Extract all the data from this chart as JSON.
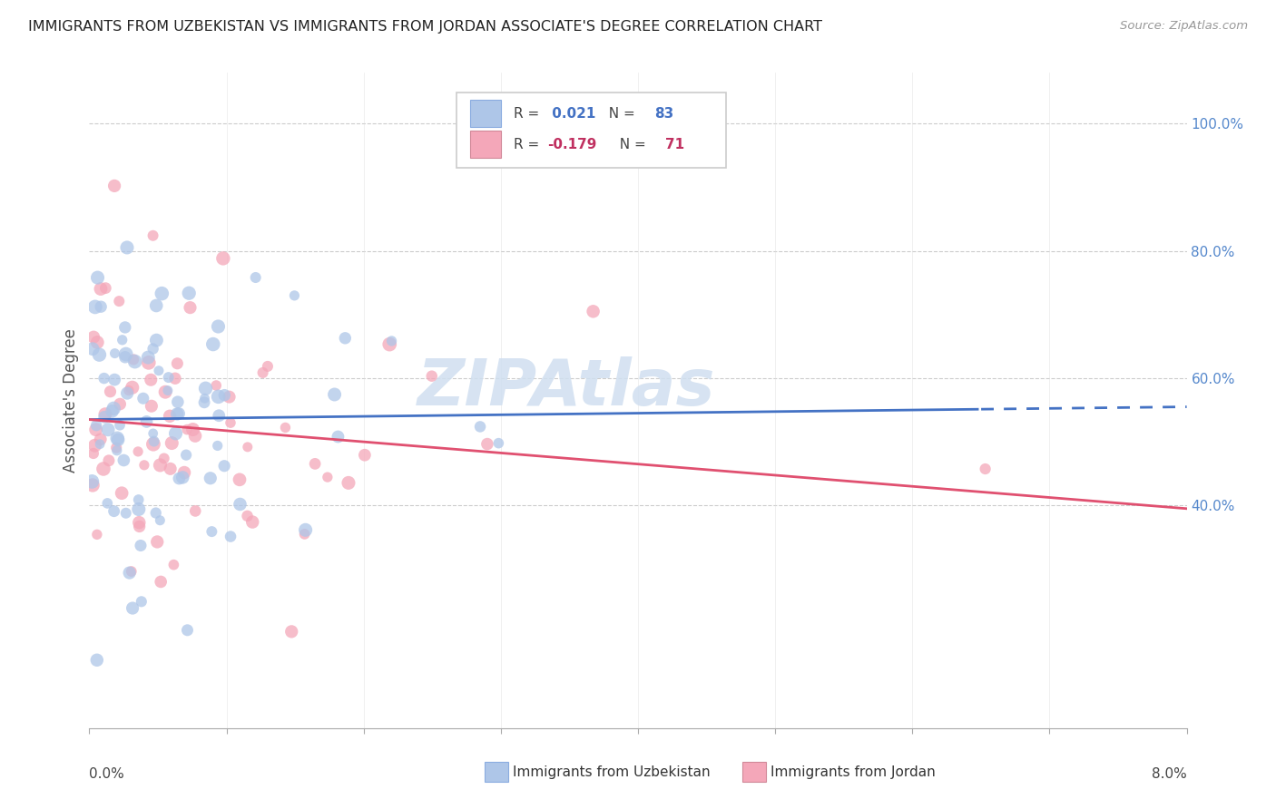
{
  "title": "IMMIGRANTS FROM UZBEKISTAN VS IMMIGRANTS FROM JORDAN ASSOCIATE'S DEGREE CORRELATION CHART",
  "source": "Source: ZipAtlas.com",
  "ylabel": "Associate's Degree",
  "right_ytick_vals": [
    0.4,
    0.6,
    0.8,
    1.0
  ],
  "right_ytick_labels": [
    "40.0%",
    "60.0%",
    "80.0%",
    "100.0%"
  ],
  "uzbekistan_color": "#aec6e8",
  "jordan_color": "#f4a7b9",
  "line_uzbekistan_solid_color": "#4472c4",
  "line_jordan_color": "#e05070",
  "xlim": [
    0.0,
    0.08
  ],
  "ylim": [
    0.05,
    1.08
  ],
  "background_color": "#ffffff",
  "watermark_text": "ZIPAtlas",
  "watermark_color": "#d0dff0",
  "n_uzbekistan": 83,
  "n_jordan": 71,
  "r_uzbekistan": 0.021,
  "r_jordan": -0.179
}
